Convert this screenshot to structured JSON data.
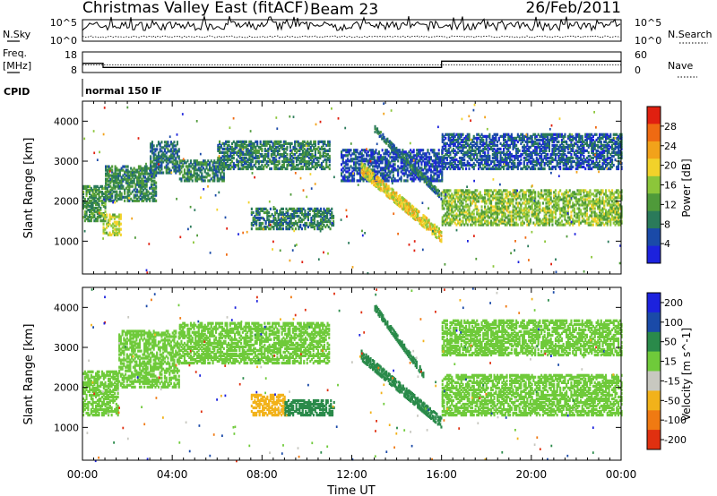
{
  "header": {
    "site": "Christmas Valley East (fitACF)",
    "beam": "Beam 23",
    "date": "26/Feb/2011"
  },
  "noise_panel": {
    "left_label": "N.Sky",
    "left_ticks": [
      "10^5",
      "10^0"
    ],
    "right_ticks": [
      "10^5",
      "10^0"
    ],
    "right_label": "N.Search"
  },
  "freq_panel": {
    "left_label_1": "Freq.",
    "left_label_2": "[MHz]",
    "left_ticks": [
      "18",
      "8"
    ],
    "right_ticks": [
      "60",
      "0"
    ],
    "right_label": "Nave",
    "freq_ylim": [
      8,
      18
    ],
    "nave_ylim": [
      0,
      60
    ],
    "freq_steps": [
      {
        "start": "00:00",
        "end": "00:55",
        "value": 12.5
      },
      {
        "start": "00:55",
        "end": "16:00",
        "value": 10.5
      },
      {
        "start": "16:00",
        "end": "24:00",
        "value": 13.5
      }
    ],
    "nave_level": 22
  },
  "cpid": {
    "label": "CPID",
    "text": "normal 150 IF"
  },
  "chart_data": [
    {
      "type": "heatmap",
      "name": "Power",
      "ylabel": "Slant Range [km]",
      "xlabel": "",
      "xlim": [
        "00:00",
        "24:00"
      ],
      "ylim": [
        180,
        4500
      ],
      "yticks": [
        "1000",
        "2000",
        "3000",
        "4000"
      ],
      "colorbar": {
        "label": "Power [dB]",
        "ticks": [
          "4",
          "8",
          "12",
          "16",
          "20",
          "24",
          "28"
        ],
        "colors": [
          "#1c22dd",
          "#1a4aa8",
          "#2a7a5a",
          "#4f9a3a",
          "#8cc63a",
          "#f2d22a",
          "#f2a21a",
          "#ef6a12",
          "#e02010"
        ]
      },
      "bands": [
        {
          "t0": 0.0,
          "t1": 1.0,
          "r0": 1500,
          "r1": 2400,
          "v": 11
        },
        {
          "t0": 0.9,
          "t1": 1.7,
          "r0": 1150,
          "r1": 1650,
          "v": 17
        },
        {
          "t0": 1.0,
          "t1": 3.3,
          "r0": 2000,
          "r1": 2900,
          "v": 10
        },
        {
          "t0": 3.0,
          "t1": 4.3,
          "r0": 2700,
          "r1": 3500,
          "v": 8
        },
        {
          "t0": 4.3,
          "t1": 6.3,
          "r0": 2500,
          "r1": 3000,
          "v": 9
        },
        {
          "t0": 6.0,
          "t1": 11.0,
          "r0": 2800,
          "r1": 3500,
          "v": 9
        },
        {
          "t0": 7.5,
          "t1": 11.2,
          "r0": 1300,
          "r1": 1800,
          "v": 9
        },
        {
          "t0": 11.5,
          "t1": 16.0,
          "r0": 2500,
          "r1": 3300,
          "v": 5
        },
        {
          "t0": 16.0,
          "t1": 24.0,
          "r0": 1400,
          "r1": 2300,
          "v": 15
        },
        {
          "t0": 16.0,
          "t1": 24.0,
          "r0": 2800,
          "r1": 3700,
          "v": 6
        }
      ],
      "slopes": [
        {
          "t0": 12.4,
          "r0": 2800,
          "t1": 16.0,
          "r1": 1100,
          "width": 280,
          "v": 19
        },
        {
          "t0": 13.0,
          "r0": 3800,
          "t1": 16.0,
          "r1": 2100,
          "width": 160,
          "v": 8
        }
      ]
    },
    {
      "type": "heatmap",
      "name": "Velocity",
      "ylabel": "Slant Range [km]",
      "xlabel": "Time UT",
      "xlim": [
        "00:00",
        "24:00"
      ],
      "ylim": [
        180,
        4500
      ],
      "xticks": [
        "00:00",
        "04:00",
        "08:00",
        "12:00",
        "16:00",
        "20:00",
        "00:00"
      ],
      "yticks": [
        "1000",
        "2000",
        "3000",
        "4000"
      ],
      "colorbar": {
        "label": "Velocity [m s^-1]",
        "ticks": [
          "200",
          "100",
          "50",
          "15",
          "-15",
          "-50",
          "-100",
          "-200"
        ],
        "colors": [
          "#1c22dd",
          "#1a4aa8",
          "#2a8a4a",
          "#6fca3a",
          "#c8c8c0",
          "#f2b21a",
          "#f07a12",
          "#e03010"
        ]
      },
      "bands": [
        {
          "t0": 0.0,
          "t1": 1.6,
          "r0": 1300,
          "r1": 2400,
          "v": 0
        },
        {
          "t0": 1.6,
          "t1": 4.3,
          "r0": 2000,
          "r1": 3400,
          "v": -5
        },
        {
          "t0": 4.3,
          "t1": 11.0,
          "r0": 2600,
          "r1": 3600,
          "v": -5
        },
        {
          "t0": 7.5,
          "t1": 9.0,
          "r0": 1300,
          "r1": 1800,
          "v": -60
        },
        {
          "t0": 9.0,
          "t1": 11.2,
          "r0": 1300,
          "r1": 1700,
          "v": 40
        },
        {
          "t0": 16.0,
          "t1": 24.0,
          "r0": 1300,
          "r1": 2300,
          "v": -3
        },
        {
          "t0": 16.0,
          "t1": 24.0,
          "r0": 2800,
          "r1": 3700,
          "v": 5
        }
      ],
      "slopes": [
        {
          "t0": 12.4,
          "r0": 2800,
          "t1": 16.0,
          "r1": 1100,
          "width": 250,
          "v": 30
        },
        {
          "t0": 13.0,
          "r0": 4000,
          "t1": 15.2,
          "r1": 2300,
          "width": 160,
          "v": 35
        }
      ]
    }
  ]
}
